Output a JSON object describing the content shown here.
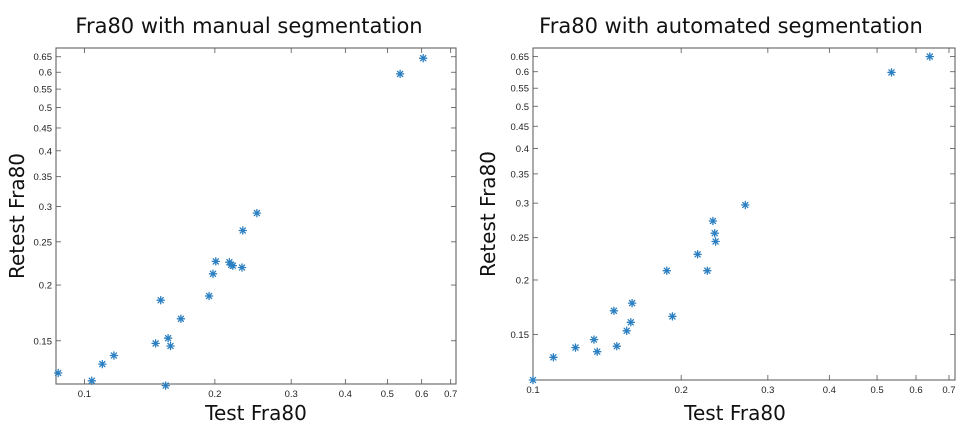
{
  "chart_data": [
    {
      "type": "scatter",
      "title": "Fra80 with manual segmentation",
      "xlabel": "Test Fra80",
      "ylabel": "Retest Fra80",
      "xscale": "log",
      "yscale": "log",
      "xlim": [
        0.086,
        0.72
      ],
      "ylim": [
        0.12,
        0.68
      ],
      "grid": false,
      "xticks": [
        0.1,
        0.2,
        0.3,
        0.4,
        0.5,
        0.6,
        0.7
      ],
      "xtick_labels": [
        "0.1",
        "0.2",
        "0.3",
        "0.4",
        "0.5",
        "0.6",
        "0.7"
      ],
      "yticks": [
        0.15,
        0.2,
        0.25,
        0.3,
        0.35,
        0.4,
        0.45,
        0.5,
        0.55,
        0.6,
        0.65
      ],
      "ytick_labels": [
        "0.15",
        "0.2",
        "0.25",
        "0.3",
        "0.35",
        "0.4",
        "0.45",
        "0.5",
        "0.55",
        "0.6",
        "0.65"
      ],
      "marker_color": "#2b7fc1",
      "x": [
        0.087,
        0.104,
        0.11,
        0.117,
        0.146,
        0.15,
        0.154,
        0.156,
        0.158,
        0.167,
        0.194,
        0.198,
        0.201,
        0.216,
        0.218,
        0.22,
        0.231,
        0.232,
        0.25,
        0.535,
        0.605
      ],
      "y": [
        0.127,
        0.122,
        0.133,
        0.139,
        0.148,
        0.185,
        0.119,
        0.152,
        0.146,
        0.168,
        0.189,
        0.212,
        0.226,
        0.225,
        0.222,
        0.221,
        0.219,
        0.265,
        0.29,
        0.595,
        0.645
      ]
    },
    {
      "type": "scatter",
      "title": "Fra80 with automated segmentation",
      "xlabel": "Test Fra80",
      "ylabel": "Retest Fra80",
      "xscale": "log",
      "yscale": "log",
      "xlim": [
        0.1,
        0.72
      ],
      "ylim": [
        0.118,
        0.68
      ],
      "grid": false,
      "xticks": [
        0.1,
        0.2,
        0.3,
        0.4,
        0.5,
        0.6,
        0.7
      ],
      "xtick_labels": [
        "0.1",
        "0.2",
        "0.3",
        "0.4",
        "0.5",
        "0.6",
        "0.7"
      ],
      "yticks": [
        0.15,
        0.2,
        0.25,
        0.3,
        0.35,
        0.4,
        0.45,
        0.5,
        0.55,
        0.6,
        0.65
      ],
      "ytick_labels": [
        "0.15",
        "0.2",
        "0.25",
        "0.3",
        "0.35",
        "0.4",
        "0.45",
        "0.5",
        "0.55",
        "0.6",
        "0.65"
      ],
      "marker_color": "#2b7fc1",
      "x": [
        0.1,
        0.11,
        0.122,
        0.133,
        0.135,
        0.146,
        0.148,
        0.155,
        0.158,
        0.159,
        0.187,
        0.192,
        0.216,
        0.226,
        0.232,
        0.234,
        0.235,
        0.27,
        0.535,
        0.64
      ],
      "y": [
        0.118,
        0.133,
        0.14,
        0.146,
        0.137,
        0.17,
        0.141,
        0.153,
        0.16,
        0.177,
        0.21,
        0.165,
        0.229,
        0.21,
        0.273,
        0.256,
        0.245,
        0.297,
        0.598,
        0.65
      ]
    }
  ]
}
